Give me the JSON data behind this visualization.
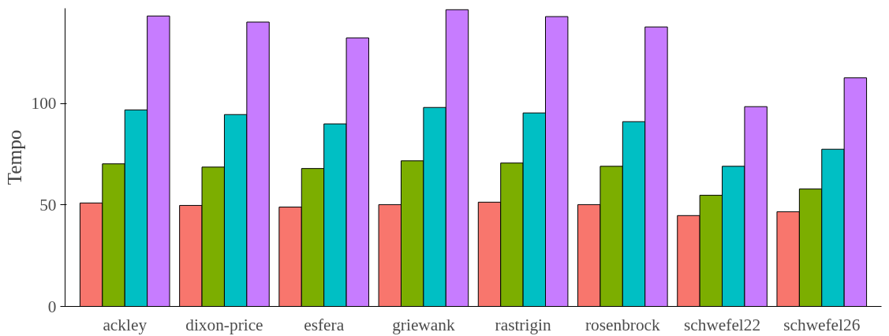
{
  "chart_data": {
    "type": "bar",
    "ylabel": "Tempo",
    "categories": [
      "ackley",
      "dixon-price",
      "esfera",
      "griewank",
      "rastrigin",
      "rosenbrock",
      "schwefel22",
      "schwefel26"
    ],
    "series": [
      {
        "color": "#f8766d",
        "values": [
          51.0,
          49.8,
          49.0,
          50.2,
          51.4,
          50.2,
          44.8,
          46.7
        ]
      },
      {
        "color": "#7cae00",
        "values": [
          70.3,
          68.7,
          68.0,
          71.8,
          70.7,
          69.1,
          54.8,
          57.9
        ]
      },
      {
        "color": "#00bfc4",
        "values": [
          96.9,
          94.6,
          90.0,
          98.1,
          95.4,
          91.1,
          69.1,
          77.5
        ]
      },
      {
        "color": "#c77cff",
        "values": [
          143.2,
          140.2,
          132.4,
          146.3,
          142.9,
          137.8,
          98.5,
          112.7
        ]
      }
    ],
    "ylim": [
      0,
      147
    ],
    "yticks": [
      0,
      50,
      100
    ],
    "grid": false
  }
}
